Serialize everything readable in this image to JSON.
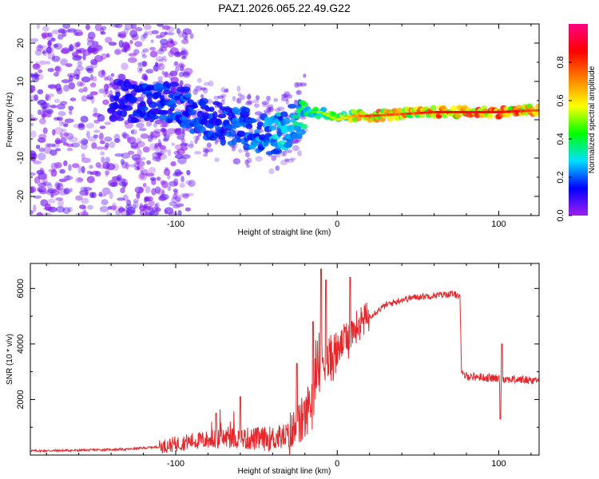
{
  "title": "PAZ1.2026.065.22.49.G22",
  "colors": {
    "snr_line": "#e8262a",
    "colorbar_stops": [
      "#a020f0",
      "#0000ff",
      "#00e0ff",
      "#00ff00",
      "#ffff00",
      "#ff8000",
      "#ff0000",
      "#ff0080"
    ]
  },
  "chart_data": [
    {
      "type": "heatmap",
      "name": "spectrogram",
      "title": "PAZ1.2026.065.22.49.G22",
      "xlabel": "Height of straight line (km)",
      "ylabel": "Frequency (Hz)",
      "xlim": [
        -190,
        125
      ],
      "ylim": [
        -25,
        25
      ],
      "xticks": [
        -100,
        0,
        100
      ],
      "xtick_labels": [
        "-100",
        "0",
        "100"
      ],
      "yticks": [
        -20,
        -10,
        0,
        10,
        20
      ],
      "ytick_labels": [
        "-20",
        "-10",
        "0",
        "10",
        "20"
      ],
      "colorbar": {
        "label": "Normalized spectral amplitude",
        "range": [
          0,
          1
        ],
        "ticks": [
          0.0,
          0.2,
          0.4,
          0.6,
          0.8
        ],
        "tick_labels": [
          "0.0",
          "0.2",
          "0.4",
          "0.6",
          "0.8"
        ]
      },
      "ridge": {
        "description": "main frequency-track",
        "x": [
          -130,
          -110,
          -100,
          -90,
          -80,
          -70,
          -60,
          -50,
          -40,
          -30,
          -20,
          -10,
          0,
          10,
          20,
          40,
          60,
          80,
          100,
          125
        ],
        "freq": [
          5,
          4,
          5,
          2,
          0,
          -1,
          -2,
          -3,
          -4,
          -2,
          2,
          2,
          0,
          1,
          1,
          1.5,
          2,
          2,
          2,
          2.5
        ],
        "amplitude": [
          0.15,
          0.2,
          0.2,
          0.2,
          0.18,
          0.2,
          0.22,
          0.25,
          0.3,
          0.3,
          0.4,
          0.45,
          0.5,
          0.6,
          0.75,
          0.7,
          0.8,
          0.85,
          0.85,
          0.7
        ]
      }
    },
    {
      "type": "line",
      "name": "snr",
      "xlabel": "Height of straight line (km)",
      "ylabel": "SNR (10 * v/v)",
      "xlim": [
        -190,
        125
      ],
      "ylim": [
        0,
        6900
      ],
      "xticks": [
        -100,
        0,
        100
      ],
      "xtick_labels": [
        "-100",
        "0",
        "100"
      ],
      "yticks": [
        2000,
        4000,
        6000
      ],
      "ytick_labels": [
        "2000",
        "4000",
        "6000"
      ],
      "series": [
        {
          "name": "SNR",
          "x": [
            -190,
            -160,
            -130,
            -110,
            -100,
            -90,
            -80,
            -70,
            -60,
            -50,
            -40,
            -30,
            -25,
            -20,
            -15,
            -12,
            -10,
            -5,
            0,
            5,
            10,
            15,
            20,
            30,
            40,
            50,
            60,
            70,
            76,
            77,
            80,
            90,
            100,
            110,
            125
          ],
          "y": [
            150,
            170,
            210,
            300,
            400,
            500,
            550,
            620,
            600,
            580,
            600,
            700,
            900,
            1400,
            2200,
            2800,
            3200,
            3400,
            3700,
            4200,
            4500,
            4800,
            5000,
            5400,
            5600,
            5700,
            5750,
            5800,
            5750,
            2900,
            2850,
            2800,
            2750,
            2720,
            2700
          ]
        }
      ],
      "spikes": [
        {
          "x": -75,
          "y": 1500
        },
        {
          "x": -60,
          "y": 2100
        },
        {
          "x": -25,
          "y": 3300
        },
        {
          "x": -15,
          "y": 4800
        },
        {
          "x": -10,
          "y": 6700
        },
        {
          "x": -7,
          "y": 6300
        },
        {
          "x": 5,
          "y": 4600
        },
        {
          "x": 8,
          "y": 6400
        },
        {
          "x": 102,
          "y": 4000
        },
        {
          "x": 101,
          "y": 1300
        }
      ]
    }
  ]
}
